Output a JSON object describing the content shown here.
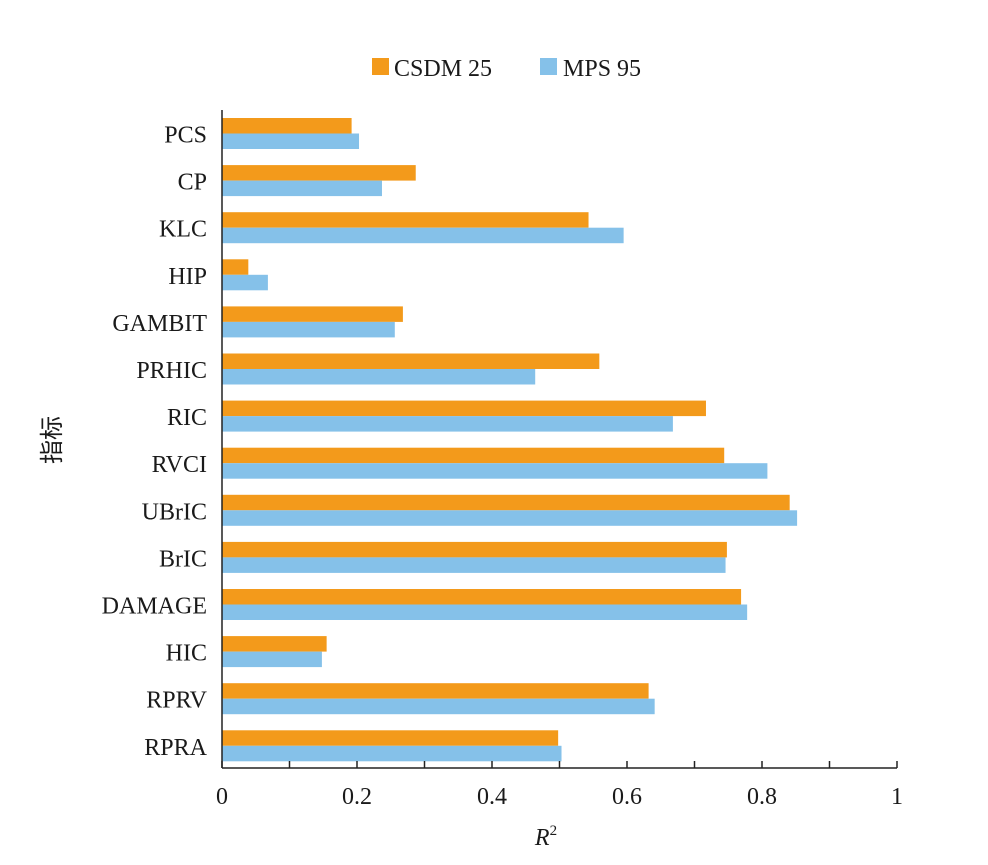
{
  "chart_data": {
    "type": "bar",
    "orientation": "horizontal",
    "title": "",
    "xlabel": "R",
    "xlabel_superscript": "2",
    "ylabel": "指标",
    "xlim": [
      0,
      1
    ],
    "xticks": [
      0,
      0.2,
      0.4,
      0.6,
      0.8,
      1
    ],
    "xtick_labels": [
      "0",
      "0.2",
      "0.4",
      "0.6",
      "0.8",
      "1"
    ],
    "grid": false,
    "legend_position": "top-center",
    "categories": [
      "PCS",
      "CP",
      "KLC",
      "HIP",
      "GAMBIT",
      "PRHIC",
      "RIC",
      "RVCI",
      "UBrIC",
      "BrIC",
      "DAMAGE",
      "HIC",
      "RPRV",
      "RPRA"
    ],
    "series": [
      {
        "name": "CSDM 25",
        "color": "#F39A1B",
        "values": [
          0.192,
          0.287,
          0.543,
          0.039,
          0.268,
          0.559,
          0.717,
          0.744,
          0.841,
          0.748,
          0.769,
          0.155,
          0.632,
          0.498
        ]
      },
      {
        "name": "MPS 95",
        "color": "#85C1E9",
        "values": [
          0.203,
          0.237,
          0.595,
          0.068,
          0.256,
          0.464,
          0.668,
          0.808,
          0.852,
          0.746,
          0.778,
          0.148,
          0.641,
          0.503
        ]
      }
    ]
  }
}
